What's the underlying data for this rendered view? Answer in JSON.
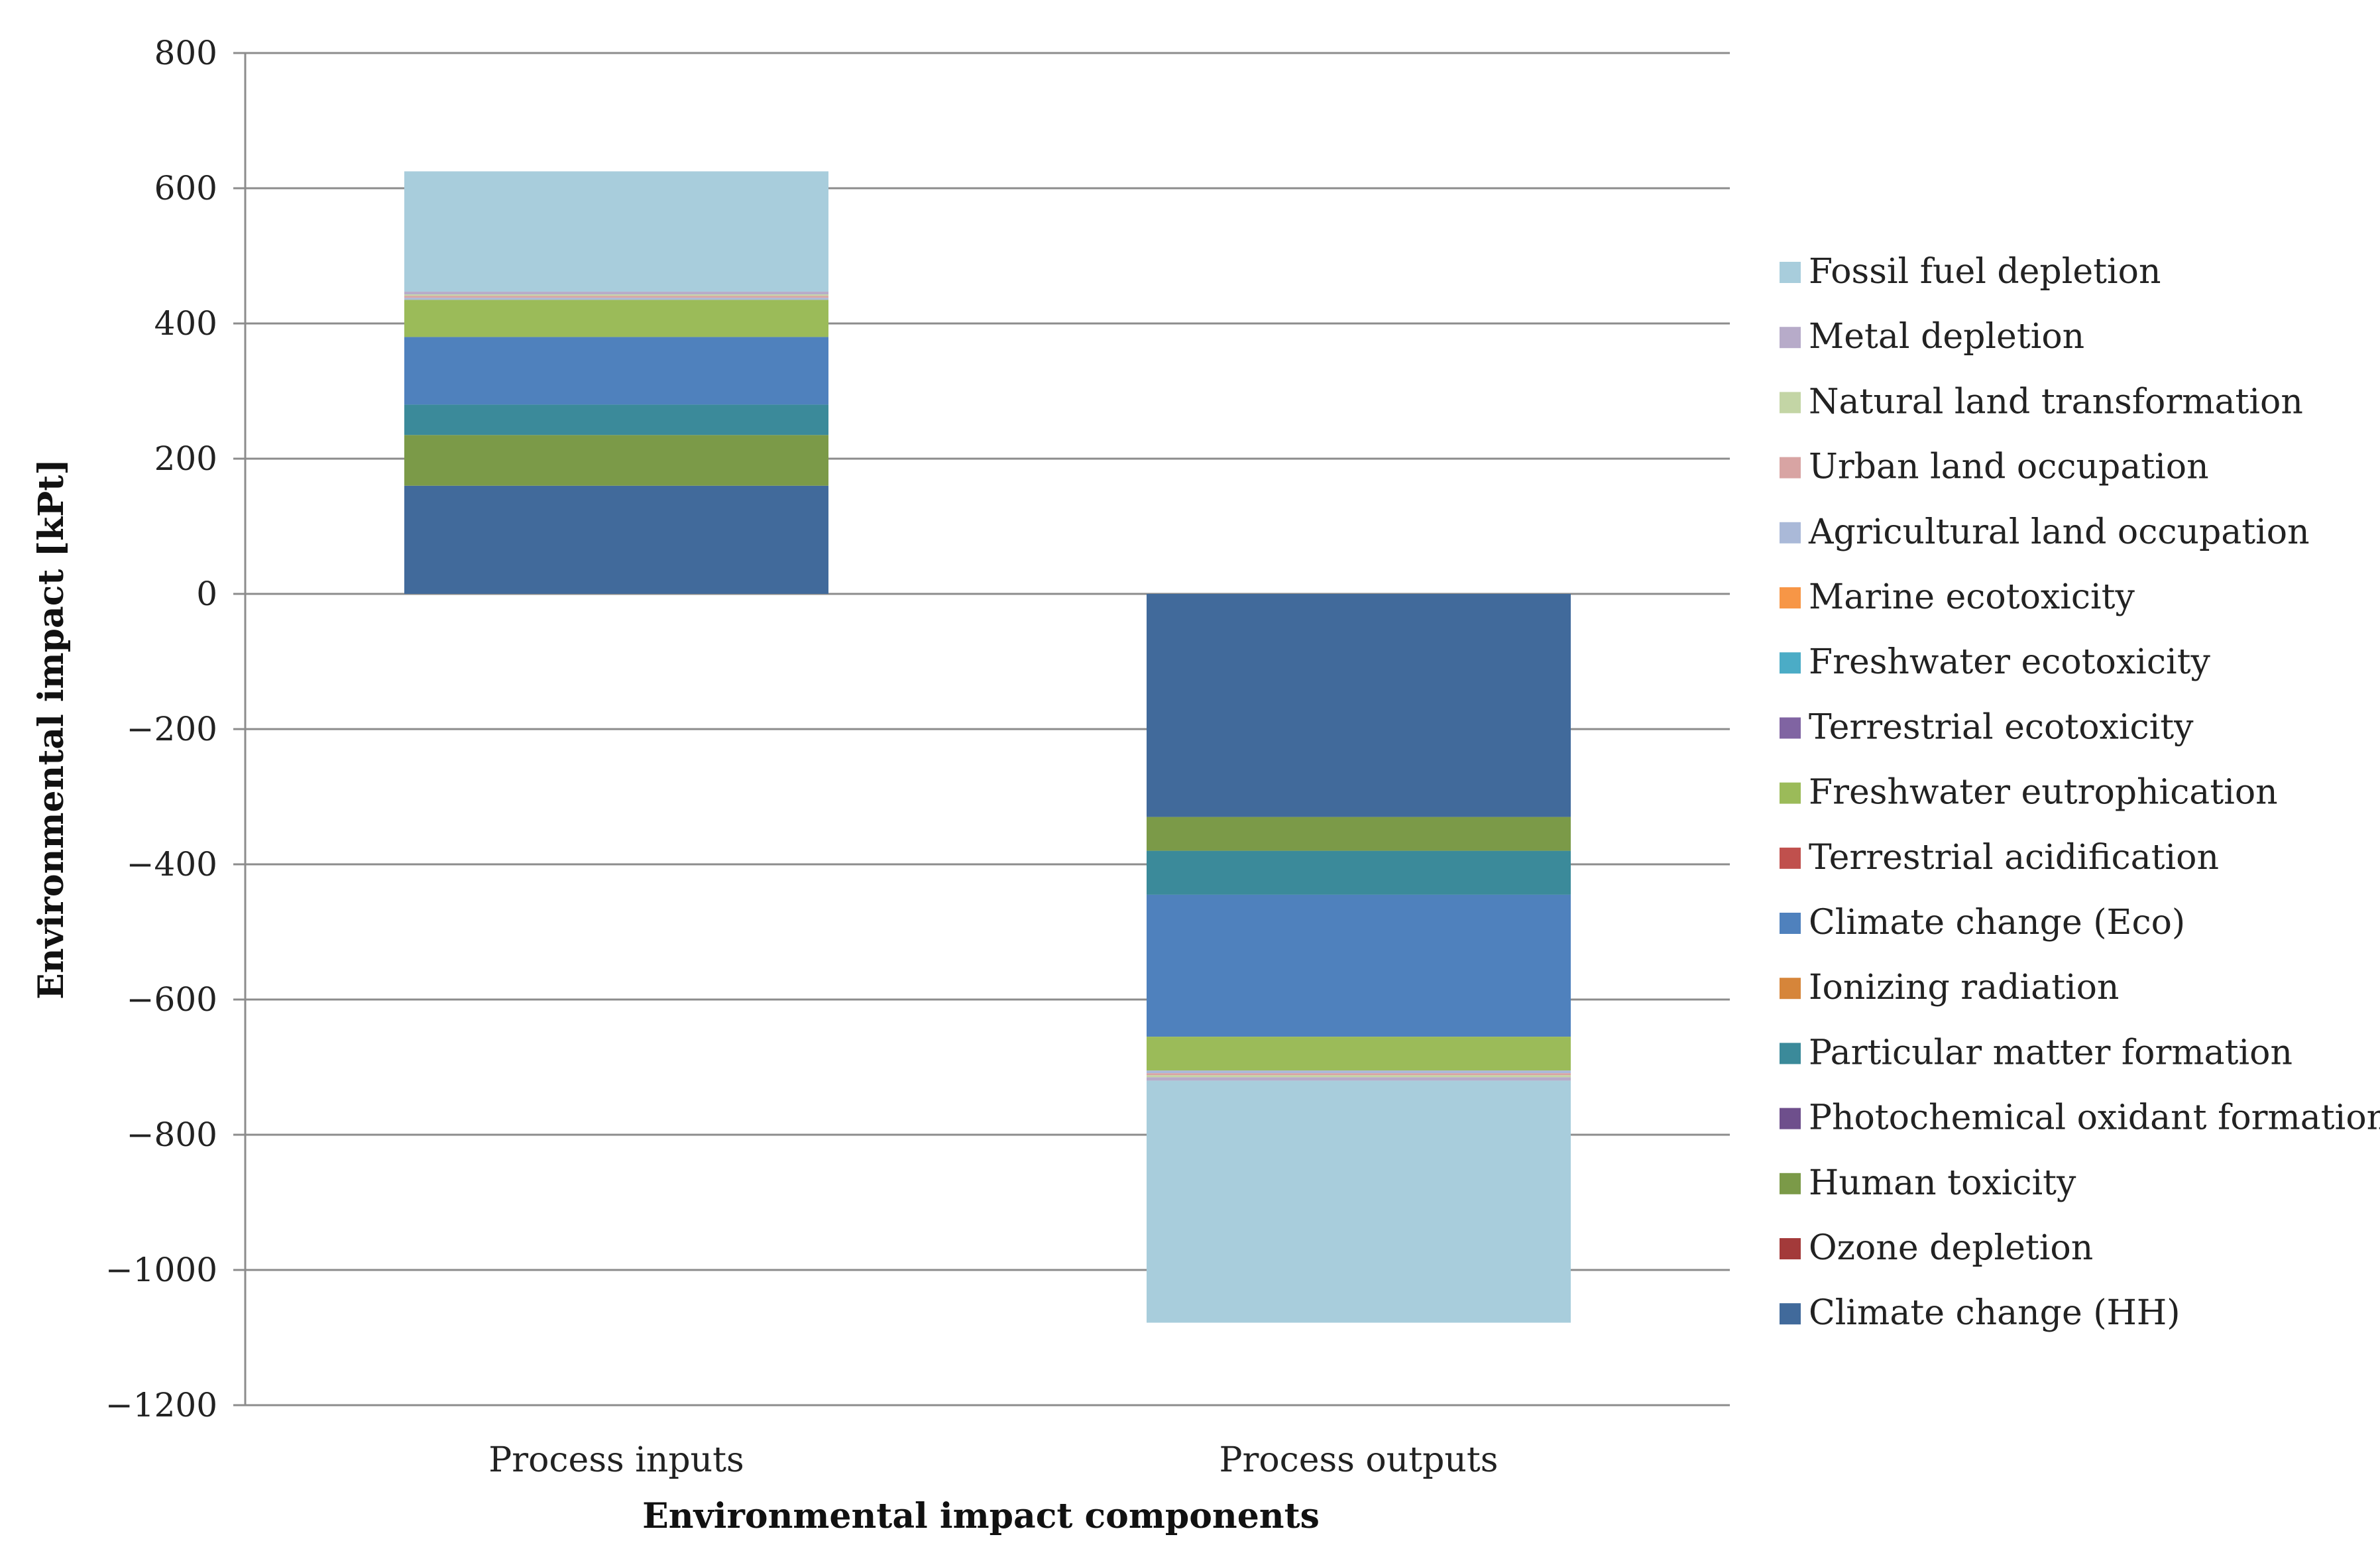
{
  "chart_data": {
    "type": "bar",
    "stacked": true,
    "title": "",
    "xlabel": "Environmental impact components",
    "ylabel": "Environmental impact [kPt]",
    "ylim": [
      -1200,
      800
    ],
    "yticks": [
      800,
      600,
      400,
      200,
      0,
      -200,
      -400,
      -600,
      -800,
      -1000,
      -1200
    ],
    "ytick_labels": [
      "800",
      "600",
      "400",
      "200",
      "0",
      "−200",
      "−400",
      "−600",
      "−800",
      "−1000",
      "−1200"
    ],
    "grid": true,
    "legend_position": "right",
    "categories": [
      "Process inputs",
      "Process outputs"
    ],
    "series": [
      {
        "name": "Climate change (HH)",
        "color": "#416a9b",
        "values": [
          160,
          -330
        ]
      },
      {
        "name": "Ozone depletion",
        "color": "#a33a3a",
        "values": [
          0,
          0
        ]
      },
      {
        "name": "Human toxicity",
        "color": "#7b9a48",
        "values": [
          75,
          -50
        ]
      },
      {
        "name": "Photochemical oxidant formation",
        "color": "#6e4f8c",
        "values": [
          0,
          0
        ]
      },
      {
        "name": "Particular matter formation",
        "color": "#3b8a9a",
        "values": [
          45,
          -65
        ]
      },
      {
        "name": "Ionizing radiation",
        "color": "#d6853a",
        "values": [
          0,
          0
        ]
      },
      {
        "name": "Climate change (Eco)",
        "color": "#4f81bd",
        "values": [
          100,
          -210
        ]
      },
      {
        "name": "Terrestrial acidification",
        "color": "#c0504d",
        "values": [
          0,
          0
        ]
      },
      {
        "name": "Freshwater eutrophication",
        "color": "#9bbb59",
        "values": [
          55,
          -50
        ]
      },
      {
        "name": "Terrestrial ecotoxicity",
        "color": "#8064a2",
        "values": [
          0,
          0
        ]
      },
      {
        "name": "Freshwater ecotoxicity",
        "color": "#4bacc6",
        "values": [
          0,
          0
        ]
      },
      {
        "name": "Marine ecotoxicity",
        "color": "#f79646",
        "values": [
          0,
          0
        ]
      },
      {
        "name": "Agricultural land occupation",
        "color": "#aab9d8",
        "values": [
          3,
          -4
        ]
      },
      {
        "name": "Urban land occupation",
        "color": "#d8a4a3",
        "values": [
          3,
          -3
        ]
      },
      {
        "name": "Natural land transformation",
        "color": "#c3d5a5",
        "values": [
          2,
          -3
        ]
      },
      {
        "name": "Metal depletion",
        "color": "#b7abc9",
        "values": [
          4,
          -5
        ]
      },
      {
        "name": "Fossil fuel depletion",
        "color": "#a8cddc",
        "values": [
          178,
          -358
        ]
      }
    ],
    "legend_order": [
      "Fossil fuel depletion",
      "Metal depletion",
      "Natural land transformation",
      "Urban land occupation",
      "Agricultural land occupation",
      "Marine ecotoxicity",
      "Freshwater ecotoxicity",
      "Terrestrial ecotoxicity",
      "Freshwater eutrophication",
      "Terrestrial acidification",
      "Climate change (Eco)",
      "Ionizing radiation",
      "Particular matter formation",
      "Photochemical oxidant formation",
      "Human toxicity",
      "Ozone depletion",
      "Climate change (HH)"
    ]
  }
}
